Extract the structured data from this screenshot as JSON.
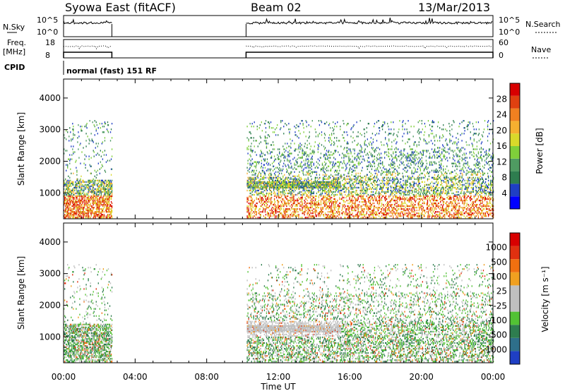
{
  "header": {
    "station": "Syowa East (fitACF)",
    "beam": "Beam 02",
    "date": "13/Mar/2013"
  },
  "strip_labels": {
    "nsky": "N.Sky",
    "nsearch": "N.Search",
    "freq": "Freq.",
    "freq_unit": "[MHz]",
    "nave": "Nave",
    "cpid": "CPID",
    "cpid_value": "normal (fast) 151 RF",
    "nsky_ticks": [
      "10^5",
      "10^0"
    ],
    "nsearch_ticks": [
      "10^5",
      "10^0"
    ],
    "freq_ticks": [
      "18",
      "8"
    ],
    "nave_ticks": [
      "60",
      "0"
    ]
  },
  "chart_data": [
    {
      "type": "heatmap",
      "name": "power-panel",
      "ylabel": "Slant Range [km]",
      "xlabel": "",
      "x_ticks": [
        "00:00",
        "04:00",
        "08:00",
        "12:00",
        "16:00",
        "20:00",
        "00:00"
      ],
      "xlim_hours": [
        0,
        24
      ],
      "y_ticks": [
        1000,
        2000,
        3000,
        4000
      ],
      "ylim_km": [
        180,
        4600
      ],
      "colorbar": {
        "label": "Power [dB]",
        "ticks": [
          "28",
          "24",
          "20",
          "16",
          "12",
          "8",
          "4"
        ],
        "colors": [
          "#0000ff",
          "#1f3fc4",
          "#2e7d4f",
          "#4f9b62",
          "#7fcf3a",
          "#d9d92a",
          "#f5b030",
          "#f08020",
          "#e04010",
          "#d80000"
        ]
      },
      "data_windows_hours": [
        [
          0,
          2.7
        ],
        [
          10.2,
          24
        ]
      ]
    },
    {
      "type": "heatmap",
      "name": "velocity-panel",
      "ylabel": "Slant Range [km]",
      "xlabel": "Time UT",
      "x_ticks": [
        "00:00",
        "04:00",
        "08:00",
        "12:00",
        "16:00",
        "20:00",
        "00:00"
      ],
      "xlim_hours": [
        0,
        24
      ],
      "y_ticks": [
        1000,
        2000,
        3000,
        4000
      ],
      "ylim_km": [
        180,
        4600
      ],
      "colorbar": {
        "label": "Velocity [m s⁻¹]",
        "ticks": [
          "1000",
          "500",
          "100",
          "25",
          "-25",
          "-100",
          "-500",
          "-1000"
        ],
        "colors": [
          "#1f3fc4",
          "#2e6f8a",
          "#2e7d4f",
          "#52c234",
          "#c0c0c0",
          "#c0c0c0",
          "#f0a020",
          "#f07010",
          "#e03010",
          "#d80000"
        ]
      },
      "data_windows_hours": [
        [
          0,
          2.7
        ],
        [
          10.2,
          24
        ]
      ]
    }
  ]
}
